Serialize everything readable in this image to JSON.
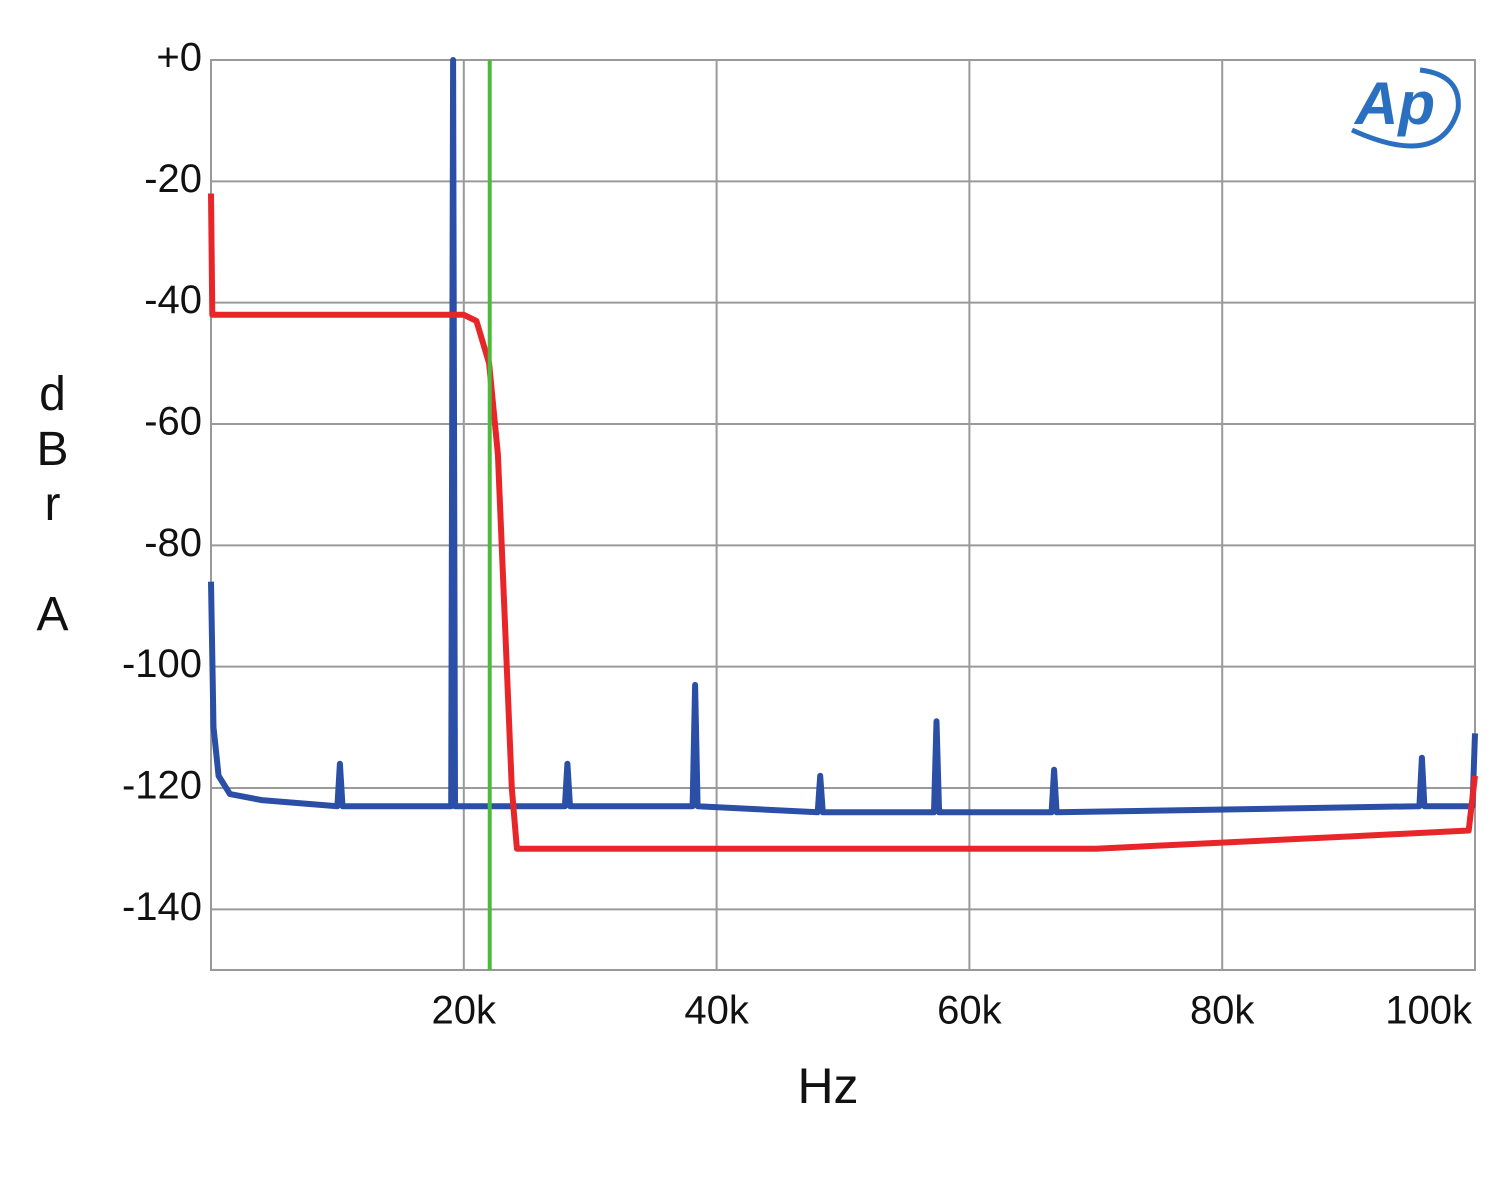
{
  "chart_data": {
    "type": "line",
    "xlabel": "Hz",
    "ylabel": "dBr A",
    "logo": "Ap",
    "xlim": [
      0,
      100000
    ],
    "ylim": [
      -150,
      0
    ],
    "xticks": [
      {
        "value": 20000,
        "label": "20k"
      },
      {
        "value": 40000,
        "label": "40k"
      },
      {
        "value": 60000,
        "label": "60k"
      },
      {
        "value": 80000,
        "label": "80k"
      },
      {
        "value": 100000,
        "label": "100k"
      }
    ],
    "yticks": [
      {
        "value": 0,
        "label": "+0"
      },
      -20,
      -40,
      -60,
      -80,
      -100,
      -120,
      -140
    ],
    "grid": true,
    "vertical_lines": [
      {
        "x": 22050,
        "color": "#4cbb3a"
      }
    ],
    "series": [
      {
        "color": "#e8262a",
        "x": [
          0,
          100,
          5000,
          10000,
          15000,
          20000,
          21000,
          22000,
          22700,
          23300,
          23800,
          24200,
          30000,
          40000,
          50000,
          60000,
          70000,
          80000,
          90000,
          99500,
          100000
        ],
        "values": [
          -22,
          -42,
          -42,
          -42,
          -42,
          -42,
          -43,
          -50,
          -65,
          -95,
          -120,
          -130,
          -130,
          -130,
          -130,
          -130,
          -130,
          -129,
          -128,
          -127,
          -118
        ]
      },
      {
        "color": "#2b4fa6",
        "x": [
          0,
          200,
          600,
          1500,
          4000,
          10000,
          10200,
          10400,
          19000,
          19150,
          19300,
          28000,
          28200,
          28400,
          38100,
          38300,
          38500,
          48000,
          48200,
          48400,
          57200,
          57400,
          57600,
          66500,
          66700,
          66900,
          95600,
          95800,
          96000,
          99800,
          100000
        ],
        "values": [
          -86,
          -110,
          -118,
          -121,
          -122,
          -123,
          -116,
          -123,
          -123,
          0,
          -123,
          -123,
          -116,
          -123,
          -123,
          -103,
          -123,
          -124,
          -118,
          -124,
          -124,
          -109,
          -124,
          -124,
          -117,
          -124,
          -123,
          -115,
          -123,
          -123,
          -111
        ]
      }
    ]
  }
}
